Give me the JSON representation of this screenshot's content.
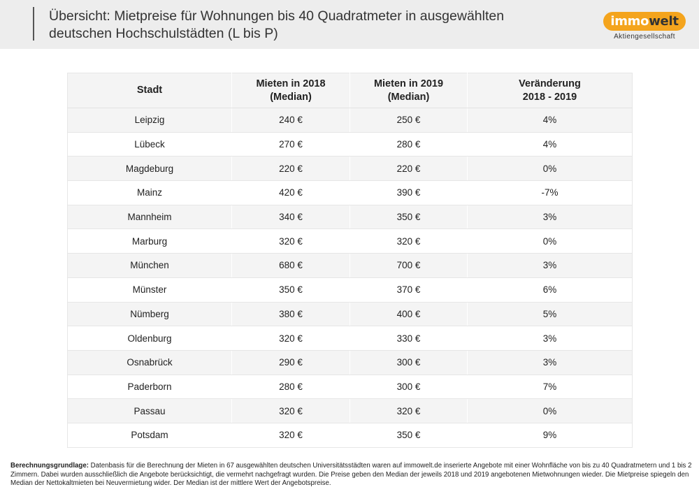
{
  "header": {
    "title_line1": "Übersicht: Mietpreise für Wohnungen bis 40 Quadratmeter in ausgewählten",
    "title_line2": "deutschen Hochschulstädten (L bis P)",
    "logo_part1": "immo",
    "logo_part2": "welt",
    "logo_sub": "Aktiengesellschaft",
    "logo_color": "#f4a41d"
  },
  "table": {
    "headers": [
      {
        "line1": "Stadt",
        "line2": ""
      },
      {
        "line1": "Mieten in 2018",
        "line2": "(Median)"
      },
      {
        "line1": "Mieten in 2019",
        "line2": "(Median)"
      },
      {
        "line1": "Veränderung",
        "line2": "2018 - 2019"
      }
    ],
    "rows": [
      [
        "Leipzig",
        "240 €",
        "250 €",
        "4%"
      ],
      [
        "Lübeck",
        "270 €",
        "280 €",
        "4%"
      ],
      [
        "Magdeburg",
        "220 €",
        "220 €",
        "0%"
      ],
      [
        "Mainz",
        "420 €",
        "390 €",
        "-7%"
      ],
      [
        "Mannheim",
        "340 €",
        "350 €",
        "3%"
      ],
      [
        "Marburg",
        "320 €",
        "320 €",
        "0%"
      ],
      [
        "München",
        "680 €",
        "700 €",
        "3%"
      ],
      [
        "Münster",
        "350 €",
        "370 €",
        "6%"
      ],
      [
        "Nümberg",
        "380 €",
        "400 €",
        "5%"
      ],
      [
        "Oldenburg",
        "320 €",
        "330 €",
        "3%"
      ],
      [
        "Osnabrück",
        "290 €",
        "300 €",
        "3%"
      ],
      [
        "Paderborn",
        "280 €",
        "300 €",
        "7%"
      ],
      [
        "Passau",
        "320 €",
        "320 €",
        "0%"
      ],
      [
        "Potsdam",
        "320 €",
        "350 €",
        "9%"
      ]
    ]
  },
  "footnote": {
    "label": "Berechnungsgrundlage:",
    "text": " Datenbasis für die Berechnung der Mieten in 67 ausgewählten deutschen Universitätsstädten waren auf immowelt.de inserierte Angebote mit einer Wohnfläche von bis zu 40 Quadratmetern und 1 bis 2 Zimmern. Dabei wurden ausschließlich die Angebote berücksichtigt, die vermehrt nachgefragt wurden. Die Preise geben den Median der jeweils 2018 und 2019 angebotenen Mietwohnungen wieder. Die Mietpreise spiegeln den Median der Nettokaltmieten bei Neuvermietung wider. Der Median ist der mittlere Wert der Angebotspreise."
  }
}
